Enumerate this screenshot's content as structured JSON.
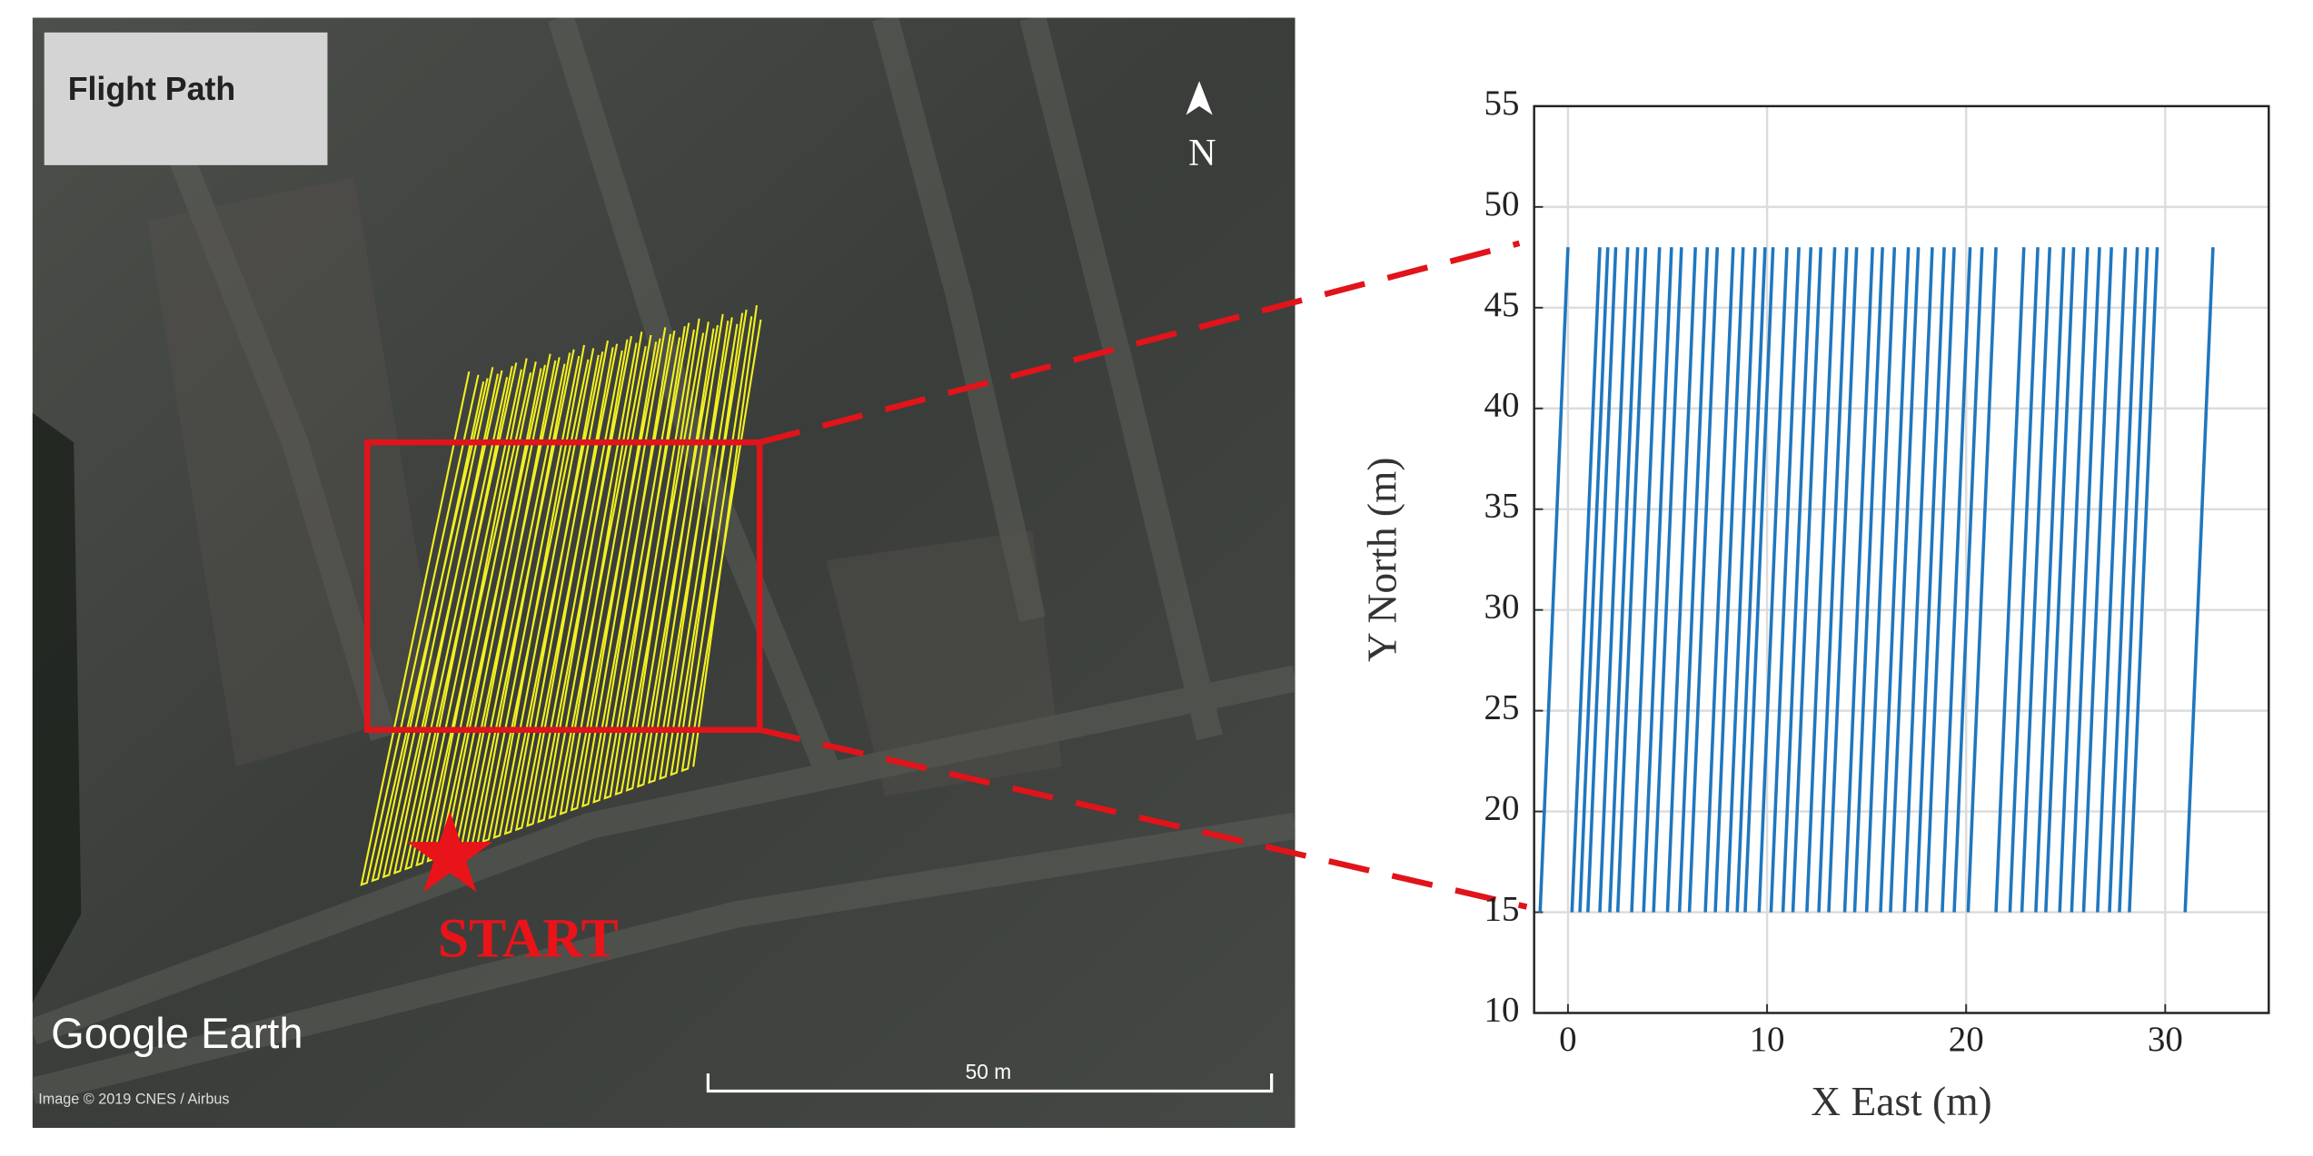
{
  "map_panel": {
    "title": "Flight Path",
    "north": "N",
    "start": "START",
    "brand": "Google Earth",
    "scale": "50 m",
    "credit": "Image © 2019 CNES / Airbus"
  },
  "chart_data": {
    "type": "line",
    "xlabel": "X East (m)",
    "ylabel": "Y North (m)",
    "xlim": [
      -1.7,
      35.2
    ],
    "ylim": [
      10,
      55
    ],
    "xticks": [
      0,
      10,
      20,
      30
    ],
    "yticks": [
      10,
      15,
      20,
      25,
      30,
      35,
      40,
      45,
      50,
      55
    ],
    "grid": true,
    "series": [
      {
        "color": "#1f77bf",
        "x": [
          -1.4,
          0.0,
          null,
          0.2,
          1.6,
          null,
          0.6,
          2.0,
          null,
          1.0,
          2.4,
          null,
          1.6,
          3.0,
          null,
          2.1,
          3.5,
          null,
          2.5,
          3.9,
          null,
          3.2,
          4.6,
          null,
          3.8,
          5.2,
          null,
          4.3,
          5.7,
          null,
          5.0,
          6.4,
          null,
          5.6,
          7.0,
          null,
          6.1,
          7.5,
          null,
          6.9,
          8.3,
          null,
          7.4,
          8.8,
          null,
          8.0,
          9.4,
          null,
          8.5,
          9.9,
          null,
          8.9,
          10.3,
          null,
          9.6,
          11.0,
          null,
          10.2,
          11.6,
          null,
          10.8,
          12.2,
          null,
          11.3,
          12.7,
          null,
          12.0,
          13.4,
          null,
          12.6,
          14.0,
          null,
          13.1,
          14.5,
          null,
          13.9,
          15.3,
          null,
          14.4,
          15.8,
          null,
          15.0,
          16.4,
          null,
          15.7,
          17.1,
          null,
          16.2,
          17.6,
          null,
          16.9,
          18.3,
          null,
          17.5,
          18.9,
          null,
          18.0,
          19.4,
          null,
          18.8,
          20.2,
          null,
          19.4,
          20.8,
          null,
          20.1,
          21.5,
          null,
          21.5,
          22.9,
          null,
          22.2,
          23.6,
          null,
          22.8,
          24.2,
          null,
          23.5,
          24.9,
          null,
          24.0,
          25.4,
          null,
          24.7,
          26.1,
          null,
          25.3,
          26.7,
          null,
          25.9,
          27.3,
          null,
          26.6,
          28.0,
          null,
          27.2,
          28.6,
          null,
          27.7,
          29.1,
          null,
          28.2,
          29.6,
          null,
          31.0,
          32.4
        ],
        "values": [
          15,
          48,
          null,
          15,
          48,
          null,
          15,
          48,
          null,
          15,
          48,
          null,
          15,
          48,
          null,
          15,
          48,
          null,
          15,
          48,
          null,
          15,
          48,
          null,
          15,
          48,
          null,
          15,
          48,
          null,
          15,
          48,
          null,
          15,
          48,
          null,
          15,
          48,
          null,
          15,
          48,
          null,
          15,
          48,
          null,
          15,
          48,
          null,
          15,
          48,
          null,
          15,
          48,
          null,
          15,
          48,
          null,
          15,
          48,
          null,
          15,
          48,
          null,
          15,
          48,
          null,
          15,
          48,
          null,
          15,
          48,
          null,
          15,
          48,
          null,
          15,
          48,
          null,
          15,
          48,
          null,
          15,
          48,
          null,
          15,
          48,
          null,
          15,
          48,
          null,
          15,
          48,
          null,
          15,
          48,
          null,
          15,
          48,
          null,
          15,
          48,
          null,
          15,
          48,
          null,
          15,
          48,
          null,
          15,
          48,
          null,
          15,
          48,
          null,
          15,
          48,
          null,
          15,
          48,
          null,
          15,
          48,
          null,
          15,
          48,
          null,
          15,
          48,
          null,
          15,
          48,
          null,
          15,
          48,
          null,
          15,
          48,
          null,
          15,
          48,
          null,
          15,
          48,
          null,
          15,
          48
        ]
      }
    ]
  }
}
